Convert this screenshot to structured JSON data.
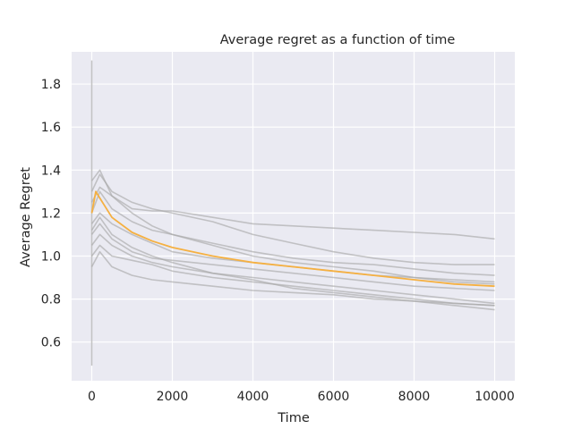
{
  "chart_data": {
    "type": "line",
    "title": "Average regret as a function of time",
    "xlabel": "Time",
    "ylabel": "Average Regret",
    "xlim": [
      -500,
      10500
    ],
    "ylim": [
      0.42,
      1.95
    ],
    "xticks": [
      0,
      2000,
      4000,
      6000,
      8000,
      10000
    ],
    "yticks": [
      0.6,
      0.8,
      1.0,
      1.2,
      1.4,
      1.6,
      1.8
    ],
    "xtick_labels": [
      "0",
      "2000",
      "4000",
      "6000",
      "8000",
      "10000"
    ],
    "ytick_labels": [
      "0.6",
      "0.8",
      "1.0",
      "1.2",
      "1.4",
      "1.6",
      "1.8"
    ],
    "grid": true,
    "colors": {
      "background": "#eaeaf2",
      "grid": "#ffffff",
      "runs": "#a9a9a9",
      "mean": "#f5b041"
    },
    "series": [
      {
        "role": "run",
        "x": [
          0,
          200,
          500,
          1000,
          1500,
          2000,
          3000,
          4000,
          5000,
          6000,
          7000,
          8000,
          9000,
          10000
        ],
        "y": [
          1.25,
          1.32,
          1.28,
          1.22,
          1.21,
          1.21,
          1.18,
          1.15,
          1.14,
          1.13,
          1.12,
          1.11,
          1.1,
          1.08
        ]
      },
      {
        "role": "run",
        "x": [
          0,
          200,
          500,
          1000,
          1500,
          2000,
          3000,
          4000,
          5000,
          6000,
          7000,
          8000,
          9000,
          10000
        ],
        "y": [
          1.3,
          1.38,
          1.3,
          1.25,
          1.22,
          1.2,
          1.16,
          1.1,
          1.06,
          1.02,
          0.99,
          0.97,
          0.96,
          0.96
        ]
      },
      {
        "role": "run",
        "x": [
          0,
          200,
          500,
          1000,
          1500,
          2000,
          3000,
          4000,
          5000,
          6000,
          7000,
          8000,
          9000,
          10000
        ],
        "y": [
          1.2,
          1.3,
          1.22,
          1.16,
          1.12,
          1.1,
          1.06,
          1.02,
          0.99,
          0.97,
          0.96,
          0.94,
          0.92,
          0.91
        ]
      },
      {
        "role": "run",
        "x": [
          0,
          200,
          500,
          1000,
          1500,
          2000,
          3000,
          4000,
          5000,
          6000,
          7000,
          8000,
          9000,
          10000
        ],
        "y": [
          1.15,
          1.2,
          1.15,
          1.1,
          1.06,
          1.02,
          0.99,
          0.97,
          0.95,
          0.93,
          0.91,
          0.9,
          0.89,
          0.88
        ]
      },
      {
        "role": "run",
        "x": [
          0,
          200,
          500,
          1000,
          1500,
          2000,
          3000,
          4000,
          5000,
          6000,
          7000,
          8000,
          9000,
          10000
        ],
        "y": [
          1.1,
          1.15,
          1.08,
          1.02,
          0.99,
          0.98,
          0.96,
          0.94,
          0.92,
          0.9,
          0.88,
          0.86,
          0.85,
          0.84
        ]
      },
      {
        "role": "run",
        "x": [
          0,
          200,
          500,
          1000,
          1500,
          2000,
          3000,
          4000,
          5000,
          6000,
          7000,
          8000,
          9000,
          10000
        ],
        "y": [
          1.05,
          1.1,
          1.05,
          1.0,
          0.97,
          0.95,
          0.92,
          0.9,
          0.88,
          0.86,
          0.84,
          0.82,
          0.8,
          0.78
        ]
      },
      {
        "role": "run",
        "x": [
          0,
          200,
          500,
          1000,
          1500,
          2000,
          3000,
          4000,
          5000,
          6000,
          7000,
          8000,
          9000,
          10000
        ],
        "y": [
          1.0,
          1.05,
          1.0,
          0.98,
          0.96,
          0.93,
          0.9,
          0.88,
          0.86,
          0.84,
          0.82,
          0.8,
          0.78,
          0.77
        ]
      },
      {
        "role": "run",
        "x": [
          0,
          200,
          500,
          1000,
          1500,
          2000,
          3000,
          4000,
          5000,
          6000,
          7000,
          8000,
          9000,
          10000
        ],
        "y": [
          1.12,
          1.18,
          1.1,
          1.04,
          1.0,
          0.97,
          0.92,
          0.89,
          0.85,
          0.83,
          0.81,
          0.79,
          0.77,
          0.75
        ]
      },
      {
        "role": "run",
        "x": [
          0,
          200,
          500,
          1000,
          1500,
          2000,
          3000,
          4000,
          5000,
          6000,
          7000,
          8000,
          9000,
          10000
        ],
        "y": [
          0.95,
          1.02,
          0.95,
          0.91,
          0.89,
          0.88,
          0.86,
          0.84,
          0.83,
          0.82,
          0.8,
          0.79,
          0.78,
          0.77
        ]
      },
      {
        "role": "run",
        "x": [
          0,
          200,
          500,
          1000,
          1500,
          2000,
          3000,
          4000,
          5000,
          6000,
          7000,
          8000,
          9000,
          10000
        ],
        "y": [
          1.35,
          1.4,
          1.28,
          1.2,
          1.14,
          1.1,
          1.05,
          1.0,
          0.97,
          0.95,
          0.93,
          0.9,
          0.88,
          0.87
        ]
      },
      {
        "role": "mean",
        "x": [
          0,
          100,
          200,
          300,
          500,
          1000,
          1500,
          2000,
          3000,
          4000,
          5000,
          6000,
          7000,
          8000,
          9000,
          10000
        ],
        "y": [
          1.2,
          1.3,
          1.27,
          1.24,
          1.18,
          1.11,
          1.07,
          1.04,
          1.0,
          0.97,
          0.95,
          0.93,
          0.91,
          0.89,
          0.87,
          0.86
        ]
      }
    ]
  }
}
